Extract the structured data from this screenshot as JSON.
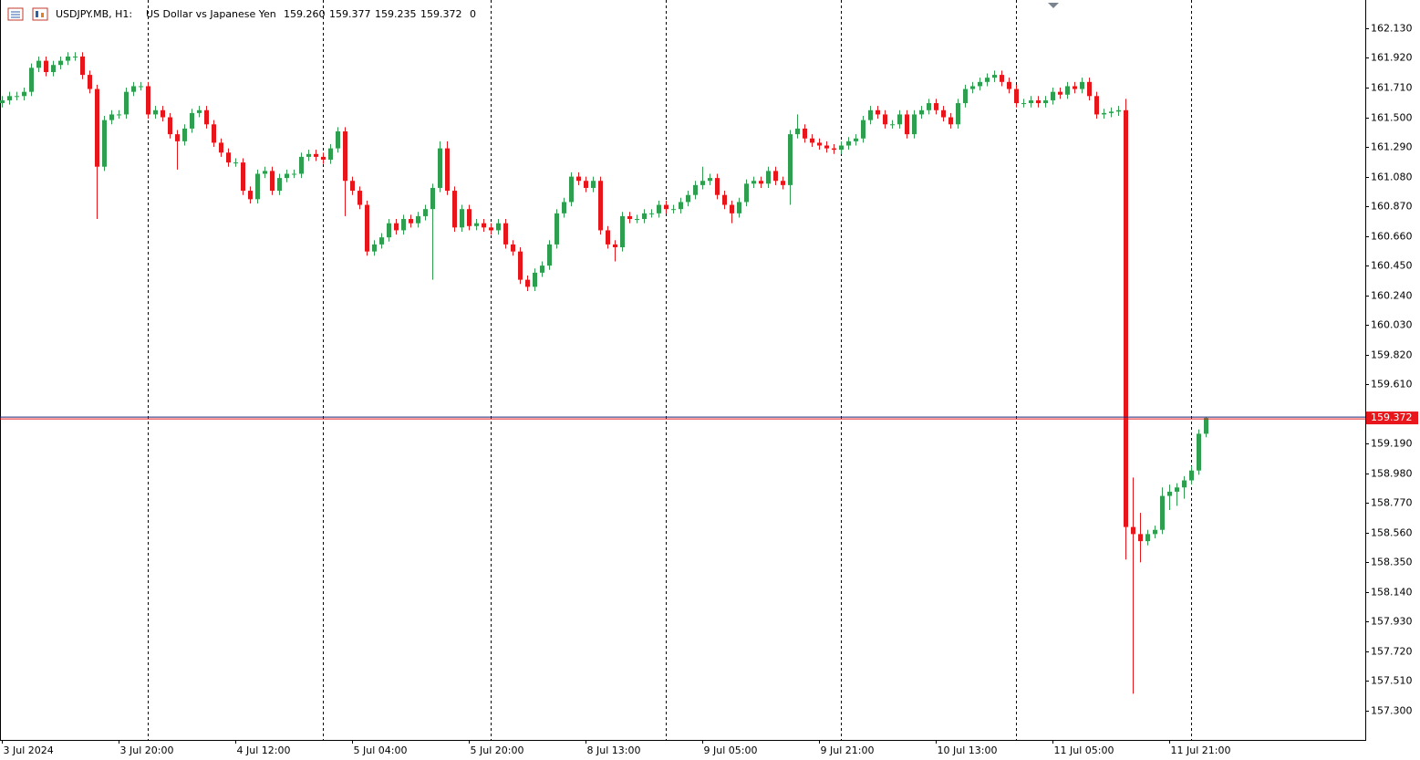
{
  "chart_data": {
    "type": "candlestick",
    "header": {
      "symbol": "USDJPY.MB, H1:",
      "description": "US Dollar vs Japanese Yen",
      "values": [
        "159.260",
        "159.377",
        "159.235",
        "159.372"
      ],
      "spread": "0"
    },
    "categories": [
      "3 Jul 2024",
      null,
      null,
      null,
      null,
      null,
      null,
      null,
      null,
      null,
      null,
      null,
      null,
      null,
      null,
      null,
      "3 Jul 20:00",
      null,
      null,
      null,
      null,
      null,
      null,
      null,
      null,
      null,
      null,
      null,
      null,
      null,
      null,
      null,
      "4 Jul 12:00",
      null,
      null,
      null,
      null,
      null,
      null,
      null,
      null,
      null,
      null,
      null,
      null,
      null,
      null,
      null,
      "5 Jul 04:00",
      null,
      null,
      null,
      null,
      null,
      null,
      null,
      null,
      null,
      null,
      null,
      null,
      null,
      null,
      null,
      "5 Jul 20:00",
      null,
      null,
      null,
      null,
      null,
      null,
      null,
      null,
      null,
      null,
      null,
      null,
      null,
      null,
      null,
      "8 Jul 13:00",
      null,
      null,
      null,
      null,
      null,
      null,
      null,
      null,
      null,
      null,
      null,
      null,
      null,
      null,
      null,
      "9 Jul 05:00",
      null,
      null,
      null,
      null,
      null,
      null,
      null,
      null,
      null,
      null,
      null,
      null,
      null,
      null,
      null,
      "9 Jul 21:00",
      null,
      null,
      null,
      null,
      null,
      null,
      null,
      null,
      null,
      null,
      null,
      null,
      null,
      null,
      null,
      "10 Jul 13:00",
      null,
      null,
      null,
      null,
      null,
      null,
      null,
      null,
      null,
      null,
      null,
      null,
      null,
      null,
      null,
      "11 Jul 05:00",
      null,
      null,
      null,
      null,
      null,
      null,
      null,
      null,
      null,
      null,
      null,
      null,
      null,
      null,
      null,
      "11 Jul 21:00",
      null,
      null,
      null,
      null,
      null
    ],
    "open": [
      161.6,
      161.62,
      161.65,
      161.65,
      161.68,
      161.85,
      161.9,
      161.82,
      161.87,
      161.9,
      161.93,
      161.93,
      161.8,
      161.7,
      161.15,
      161.48,
      161.52,
      161.52,
      161.68,
      161.72,
      161.72,
      161.52,
      161.55,
      161.5,
      161.38,
      161.33,
      161.42,
      161.53,
      161.55,
      161.45,
      161.32,
      161.25,
      161.18,
      161.18,
      160.98,
      160.92,
      161.1,
      161.12,
      160.98,
      161.07,
      161.1,
      161.1,
      161.22,
      161.24,
      161.22,
      161.2,
      161.28,
      161.4,
      161.05,
      160.98,
      160.88,
      160.55,
      160.6,
      160.65,
      160.75,
      160.7,
      160.78,
      160.75,
      160.8,
      160.85,
      161.0,
      161.28,
      160.98,
      160.72,
      160.85,
      160.73,
      160.75,
      160.72,
      160.7,
      160.75,
      160.6,
      160.55,
      160.35,
      160.3,
      160.4,
      160.45,
      160.6,
      160.82,
      160.9,
      161.08,
      161.05,
      161.0,
      161.05,
      160.7,
      160.6,
      160.58,
      160.8,
      160.78,
      160.78,
      160.82,
      160.82,
      160.88,
      160.85,
      160.85,
      160.9,
      160.95,
      161.02,
      161.05,
      161.07,
      160.95,
      160.88,
      160.82,
      160.9,
      161.03,
      161.05,
      161.03,
      161.12,
      161.05,
      161.02,
      161.38,
      161.42,
      161.35,
      161.32,
      161.3,
      161.28,
      161.27,
      161.3,
      161.33,
      161.35,
      161.48,
      161.55,
      161.52,
      161.45,
      161.45,
      161.52,
      161.38,
      161.52,
      161.55,
      161.6,
      161.55,
      161.5,
      161.45,
      161.6,
      161.7,
      161.72,
      161.75,
      161.78,
      161.8,
      161.75,
      161.7,
      161.6,
      161.6,
      161.62,
      161.6,
      161.62,
      161.68,
      161.66,
      161.72,
      161.7,
      161.75,
      161.65,
      161.52,
      161.53,
      161.54,
      161.55,
      158.6,
      158.55,
      158.5,
      158.55,
      158.58,
      158.82,
      158.85,
      158.88,
      158.93,
      159.0,
      159.26
    ],
    "high": [
      161.65,
      161.68,
      161.68,
      161.71,
      161.88,
      161.93,
      161.93,
      161.9,
      161.93,
      161.96,
      161.96,
      161.96,
      161.83,
      161.73,
      161.51,
      161.55,
      161.55,
      161.71,
      161.75,
      161.75,
      161.75,
      161.58,
      161.58,
      161.53,
      161.41,
      161.45,
      161.56,
      161.58,
      161.58,
      161.48,
      161.35,
      161.28,
      161.21,
      161.21,
      161.01,
      161.13,
      161.15,
      161.15,
      161.1,
      161.13,
      161.13,
      161.25,
      161.27,
      161.27,
      161.25,
      161.31,
      161.43,
      161.43,
      161.08,
      161.01,
      160.91,
      160.63,
      160.68,
      160.78,
      160.78,
      160.81,
      160.81,
      160.83,
      160.88,
      161.03,
      161.33,
      161.33,
      161.01,
      160.88,
      160.88,
      160.78,
      160.78,
      160.75,
      160.78,
      160.78,
      160.63,
      160.58,
      160.38,
      160.43,
      160.48,
      160.63,
      160.85,
      160.93,
      161.11,
      161.11,
      161.08,
      161.08,
      161.08,
      160.73,
      160.63,
      160.83,
      160.83,
      160.81,
      160.85,
      160.85,
      160.91,
      160.91,
      160.88,
      160.93,
      160.98,
      161.05,
      161.15,
      161.1,
      161.1,
      160.98,
      160.91,
      160.93,
      161.06,
      161.08,
      161.08,
      161.15,
      161.15,
      161.08,
      161.41,
      161.52,
      161.45,
      161.38,
      161.35,
      161.33,
      161.31,
      161.33,
      161.36,
      161.38,
      161.51,
      161.58,
      161.58,
      161.55,
      161.48,
      161.55,
      161.55,
      161.55,
      161.58,
      161.63,
      161.63,
      161.58,
      161.53,
      161.63,
      161.73,
      161.75,
      161.78,
      161.81,
      161.83,
      161.83,
      161.78,
      161.73,
      161.63,
      161.65,
      161.65,
      161.65,
      161.71,
      161.71,
      161.75,
      161.75,
      161.78,
      161.78,
      161.68,
      161.56,
      161.57,
      161.58,
      161.63,
      158.95,
      158.7,
      158.58,
      158.61,
      158.88,
      158.9,
      158.91,
      158.96,
      159.03,
      159.29,
      159.377
    ],
    "low": [
      161.57,
      161.59,
      161.62,
      161.62,
      161.65,
      161.82,
      161.79,
      161.79,
      161.84,
      161.87,
      161.9,
      161.77,
      161.67,
      160.78,
      161.12,
      161.45,
      161.49,
      161.49,
      161.65,
      161.69,
      161.49,
      161.49,
      161.47,
      161.35,
      161.13,
      161.3,
      161.39,
      161.5,
      161.42,
      161.29,
      161.22,
      161.15,
      161.15,
      160.95,
      160.89,
      160.89,
      161.07,
      160.95,
      160.95,
      161.04,
      161.07,
      161.07,
      161.19,
      161.19,
      161.17,
      161.17,
      161.25,
      160.8,
      160.95,
      160.85,
      160.52,
      160.52,
      160.57,
      160.62,
      160.67,
      160.67,
      160.72,
      160.72,
      160.77,
      160.35,
      160.97,
      160.95,
      160.69,
      160.69,
      160.7,
      160.7,
      160.69,
      160.67,
      160.67,
      160.57,
      160.52,
      160.32,
      160.27,
      160.27,
      160.37,
      160.42,
      160.57,
      160.79,
      160.87,
      161.02,
      160.97,
      160.97,
      160.67,
      160.57,
      160.48,
      160.55,
      160.75,
      160.75,
      160.75,
      160.79,
      160.79,
      160.82,
      160.82,
      160.82,
      160.87,
      160.92,
      160.99,
      161.02,
      160.92,
      160.85,
      160.75,
      160.79,
      160.87,
      161.0,
      161.0,
      161.0,
      161.02,
      160.99,
      160.88,
      161.35,
      161.32,
      161.29,
      161.27,
      161.25,
      161.24,
      161.24,
      161.27,
      161.3,
      161.32,
      161.45,
      161.49,
      161.42,
      161.42,
      161.42,
      161.35,
      161.35,
      161.49,
      161.52,
      161.52,
      161.47,
      161.42,
      161.42,
      161.57,
      161.67,
      161.69,
      161.72,
      161.75,
      161.72,
      161.67,
      161.57,
      161.57,
      161.57,
      161.57,
      161.57,
      161.59,
      161.63,
      161.63,
      161.67,
      161.67,
      161.62,
      161.49,
      161.49,
      161.5,
      161.51,
      158.37,
      157.42,
      158.35,
      158.47,
      158.52,
      158.55,
      158.72,
      158.75,
      158.8,
      158.9,
      158.97,
      159.235
    ],
    "close": [
      161.62,
      161.65,
      161.65,
      161.68,
      161.85,
      161.9,
      161.82,
      161.87,
      161.9,
      161.93,
      161.93,
      161.8,
      161.7,
      161.15,
      161.48,
      161.52,
      161.52,
      161.68,
      161.72,
      161.72,
      161.52,
      161.55,
      161.5,
      161.38,
      161.33,
      161.42,
      161.53,
      161.55,
      161.45,
      161.32,
      161.25,
      161.18,
      161.18,
      160.98,
      160.92,
      161.1,
      161.12,
      160.98,
      161.07,
      161.1,
      161.1,
      161.22,
      161.24,
      161.22,
      161.2,
      161.28,
      161.4,
      161.05,
      160.98,
      160.88,
      160.55,
      160.6,
      160.65,
      160.75,
      160.7,
      160.78,
      160.75,
      160.8,
      160.85,
      161.0,
      161.28,
      160.98,
      160.72,
      160.85,
      160.73,
      160.75,
      160.72,
      160.7,
      160.75,
      160.6,
      160.55,
      160.35,
      160.3,
      160.4,
      160.45,
      160.6,
      160.82,
      160.9,
      161.08,
      161.05,
      161.0,
      161.05,
      160.7,
      160.6,
      160.58,
      160.8,
      160.78,
      160.78,
      160.82,
      160.82,
      160.88,
      160.85,
      160.85,
      160.9,
      160.95,
      161.02,
      161.05,
      161.07,
      160.95,
      160.88,
      160.82,
      160.9,
      161.03,
      161.05,
      161.03,
      161.12,
      161.05,
      161.02,
      161.38,
      161.42,
      161.35,
      161.32,
      161.3,
      161.28,
      161.27,
      161.3,
      161.33,
      161.35,
      161.48,
      161.55,
      161.52,
      161.45,
      161.45,
      161.52,
      161.38,
      161.52,
      161.55,
      161.6,
      161.55,
      161.5,
      161.45,
      161.6,
      161.7,
      161.72,
      161.75,
      161.78,
      161.8,
      161.75,
      161.7,
      161.6,
      161.6,
      161.62,
      161.6,
      161.62,
      161.68,
      161.66,
      161.72,
      161.7,
      161.75,
      161.65,
      161.52,
      161.53,
      161.54,
      161.55,
      158.6,
      158.55,
      158.5,
      158.55,
      158.58,
      158.82,
      158.85,
      158.88,
      158.93,
      159.0,
      159.26,
      159.372
    ],
    "up_color": "#2e9e4f",
    "down_color": "#e8161b",
    "current_price": {
      "value": 159.372,
      "label": "159.372"
    },
    "ylim": [
      157.093,
      162.33
    ],
    "yticks": [
      {
        "value": 162.13,
        "label": "162.130"
      },
      {
        "value": 161.92,
        "label": "161.920"
      },
      {
        "value": 161.71,
        "label": "161.710"
      },
      {
        "value": 161.5,
        "label": "161.500"
      },
      {
        "value": 161.29,
        "label": "161.290"
      },
      {
        "value": 161.08,
        "label": "161.080"
      },
      {
        "value": 160.87,
        "label": "160.870"
      },
      {
        "value": 160.66,
        "label": "160.660"
      },
      {
        "value": 160.45,
        "label": "160.450"
      },
      {
        "value": 160.24,
        "label": "160.240"
      },
      {
        "value": 160.03,
        "label": "160.030"
      },
      {
        "value": 159.82,
        "label": "159.820"
      },
      {
        "value": 159.61,
        "label": "159.610"
      },
      {
        "value": 159.19,
        "label": "159.190"
      },
      {
        "value": 158.98,
        "label": "158.980"
      },
      {
        "value": 158.77,
        "label": "158.770"
      },
      {
        "value": 158.56,
        "label": "158.560"
      },
      {
        "value": 158.35,
        "label": "158.350"
      },
      {
        "value": 158.14,
        "label": "158.140"
      },
      {
        "value": 157.93,
        "label": "157.930"
      },
      {
        "value": 157.72,
        "label": "157.720"
      },
      {
        "value": 157.51,
        "label": "157.510"
      },
      {
        "value": 157.3,
        "label": "157.300"
      }
    ]
  }
}
